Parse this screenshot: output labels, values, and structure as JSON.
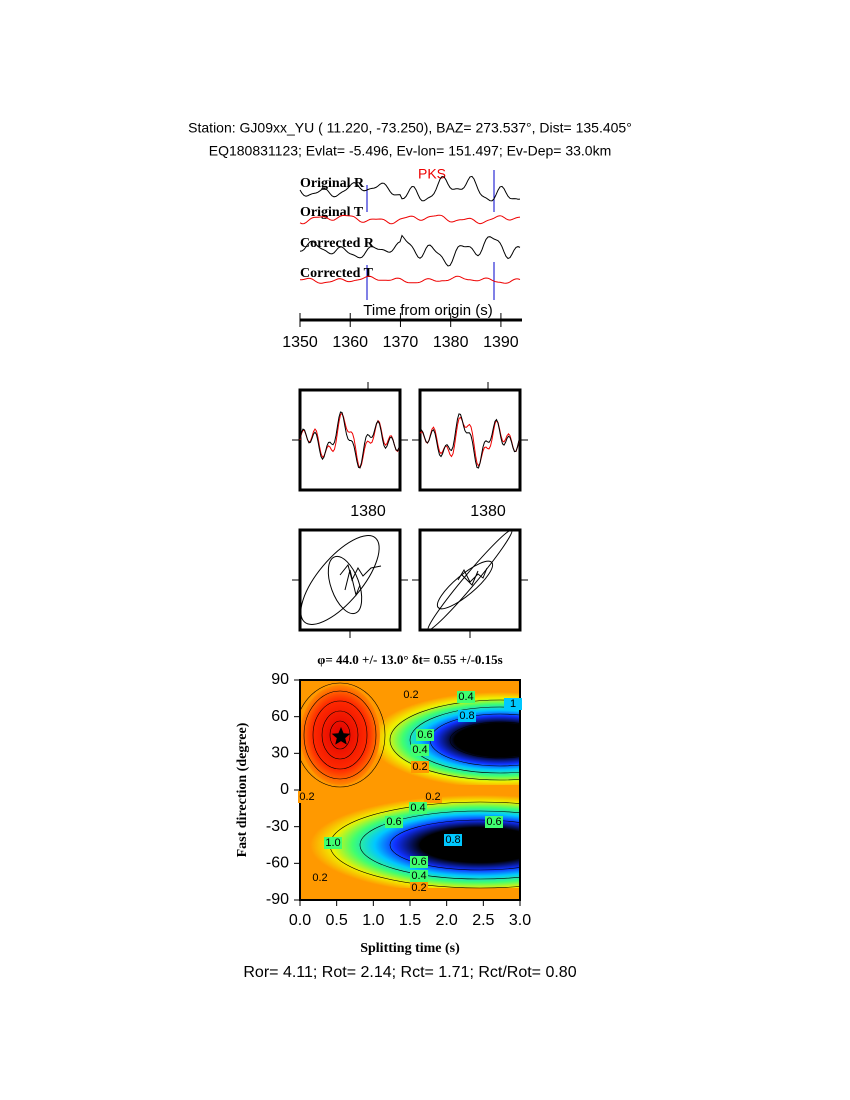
{
  "header": {
    "line1": "Station: GJ09xx_YU (  11.220,  -73.250), BAZ=  273.537°, Dist=  135.405°",
    "line2": "EQ180831123; Evlat=  -5.496, Ev-lon= 151.497; Ev-Dep= 33.0km"
  },
  "traces": {
    "labels": [
      "Original R",
      "Original T",
      "Corrected R",
      "Corrected T"
    ],
    "phase": "PKS",
    "xlabel": "Time from origin (s)",
    "xlim": [
      1350,
      1393.8
    ],
    "xticks": [
      1350,
      1360,
      1370,
      1380,
      1390
    ]
  },
  "panels": {
    "xtick": 1380
  },
  "grid_search": {
    "title": "φ= 44.0 +/- 13.0° δt= 0.55 +/-0.15s",
    "xlabel": "Splitting time (s)",
    "ylabel": "Fast direction (degree)",
    "xlim": [
      0,
      3
    ],
    "xticks": [
      {
        "value": 0,
        "label": "0.0"
      },
      0.5,
      {
        "value": 1,
        "label": "1.0"
      },
      1.5,
      {
        "value": 2,
        "label": "2.0"
      },
      2.5,
      {
        "value": 3,
        "label": "3.0"
      }
    ],
    "ylim": [
      -90,
      90
    ],
    "yticks": [
      90,
      60,
      30,
      0,
      -30,
      -60,
      -90
    ],
    "contour_labels": [
      "0.2",
      "0.4",
      "0.8",
      "1",
      "0.6",
      "0.4",
      "0.2",
      "0.2",
      "0.2",
      "0.4",
      "0.6",
      "0.6",
      "0.8",
      "1.0",
      "0.6",
      "0.4",
      "0.2",
      "0.2"
    ]
  },
  "footer": "Ror= 4.11; Rot= 2.14; Rct= 1.71; Rct/Rot= 0.80"
}
